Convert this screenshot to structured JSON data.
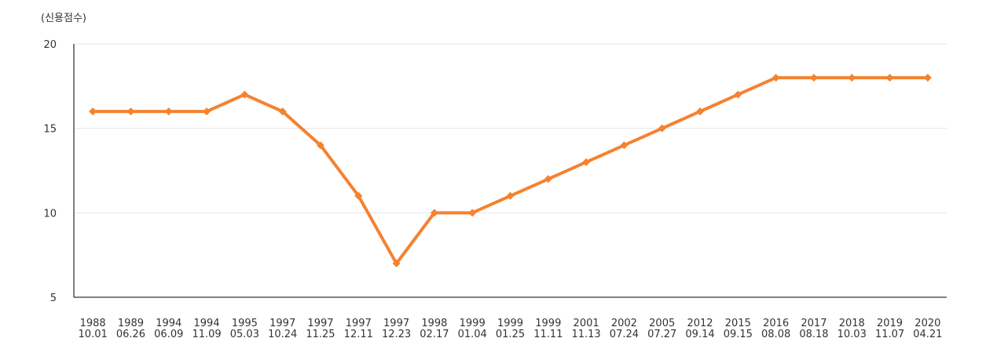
{
  "chart_data": {
    "type": "line",
    "y_label": "(신용점수)",
    "categories": [
      "1988\n10.01",
      "1989\n06.26",
      "1994\n06.09",
      "1994\n11.09",
      "1995\n05.03",
      "1997\n10.24",
      "1997\n11.25",
      "1997\n12.11",
      "1997\n12.23",
      "1998\n02.17",
      "1999\n01.04",
      "1999\n01.25",
      "1999\n11.11",
      "2001\n11.13",
      "2002\n07.24",
      "2005\n07.27",
      "2012\n09.14",
      "2015\n09.15",
      "2016\n08.08",
      "2017\n08.18",
      "2018\n10.03",
      "2019\n11.07",
      "2020\n04.21"
    ],
    "values": [
      16,
      16,
      16,
      16,
      17,
      16,
      14,
      11,
      7,
      10,
      10,
      11,
      12,
      13,
      14,
      15,
      16,
      17,
      18,
      18,
      18,
      18,
      18
    ],
    "color": "#f5822f",
    "ylim": [
      5,
      20
    ],
    "yticks": [
      5,
      10,
      15,
      20
    ],
    "grid": true
  }
}
